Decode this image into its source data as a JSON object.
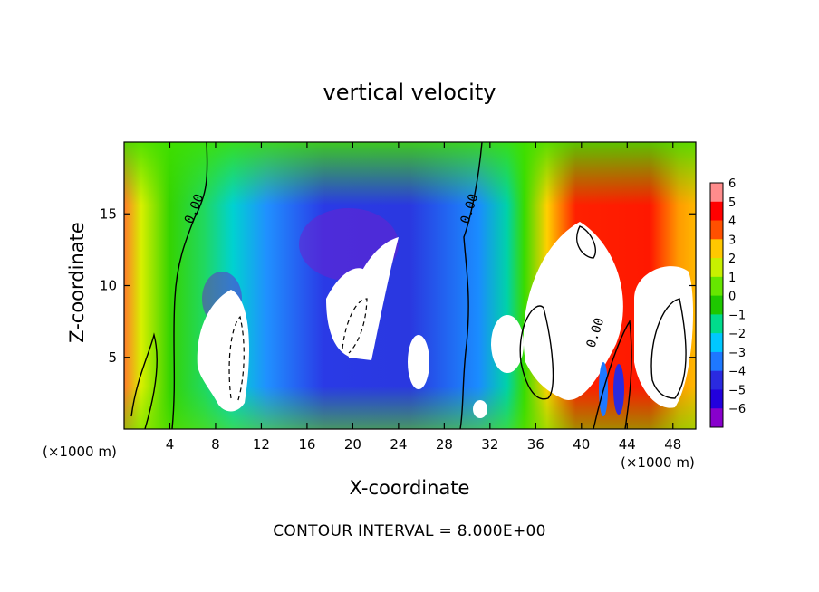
{
  "chart_data": {
    "type": "heatmap",
    "title": "vertical velocity",
    "xlabel": "X-coordinate",
    "ylabel": "Z-coordinate",
    "x_unit": "(×1000 m)",
    "xlim": [
      0,
      50
    ],
    "ylim": [
      0,
      20
    ],
    "x_ticks": [
      4,
      8,
      12,
      16,
      20,
      24,
      28,
      32,
      36,
      40,
      44,
      48
    ],
    "y_ticks": [
      5,
      10,
      15
    ],
    "colorbar": {
      "levels": [
        6,
        5,
        4,
        3,
        2,
        1,
        0,
        -1,
        -2,
        -3,
        -4,
        -5,
        -6
      ],
      "labels": [
        "6",
        "5",
        "4",
        "3",
        "2",
        "1",
        "0",
        "−1",
        "−2",
        "−3",
        "−4",
        "−5",
        "−6"
      ]
    },
    "contour_label": "0.00",
    "contour_interval": "CONTOUR INTERVAL = 8.000E+00",
    "colors": {
      "neg6": "#8800cc",
      "neg5": "#2200dd",
      "neg4": "#2a2ae0",
      "neg3": "#1e78ff",
      "neg2": "#00c8ff",
      "neg1": "#00dc8c",
      "zero": "#1ec800",
      "pos1": "#66e600",
      "pos2": "#c8f000",
      "pos3": "#ffc800",
      "pos4": "#ff5000",
      "pos5": "#ff0000",
      "pos6": "#ff8c8c",
      "over": "#ffffff"
    }
  }
}
